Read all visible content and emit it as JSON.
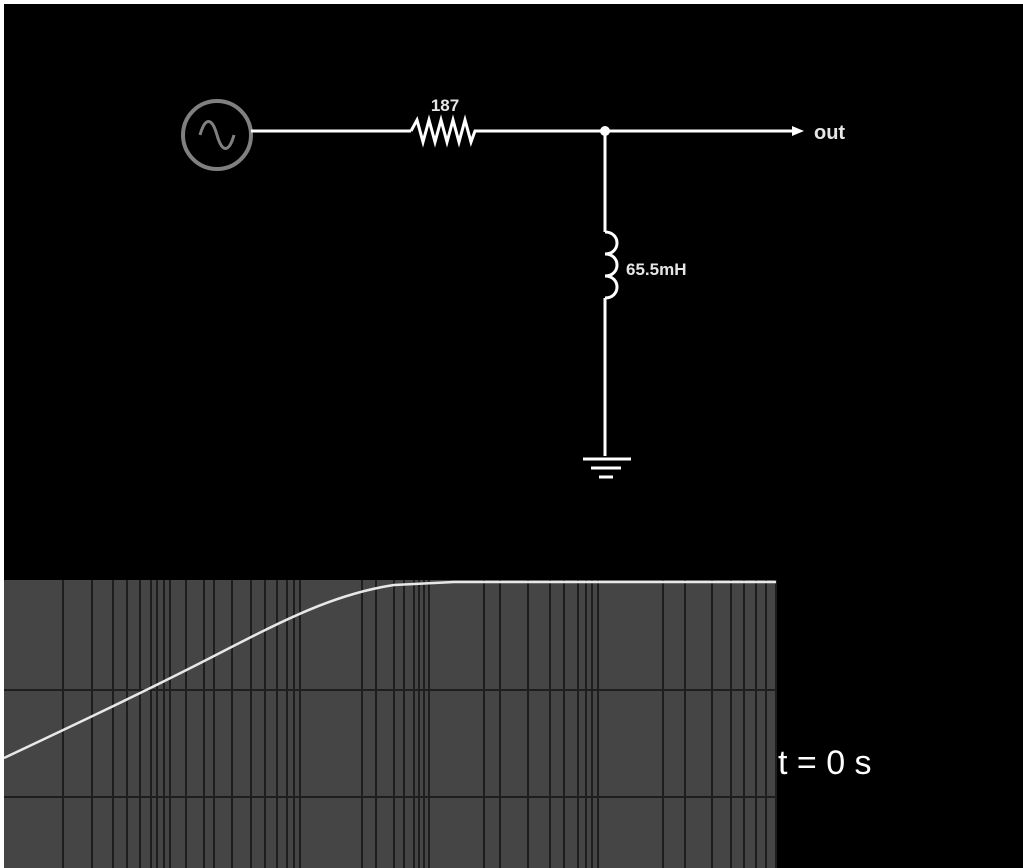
{
  "circuit": {
    "source_icon": "ac-source-icon",
    "resistor_label": "187",
    "inductor_label": "65.5mH",
    "output_label": "out",
    "ground_icon": "ground-icon"
  },
  "scope": {
    "time_readout": "t = 0 s"
  },
  "colors": {
    "background": "#000000",
    "wire": "#ffffff",
    "source_ring": "#808080",
    "scope_bg": "#454545",
    "grid": "#1e1e1e",
    "trace": "#e8e8e8"
  }
}
